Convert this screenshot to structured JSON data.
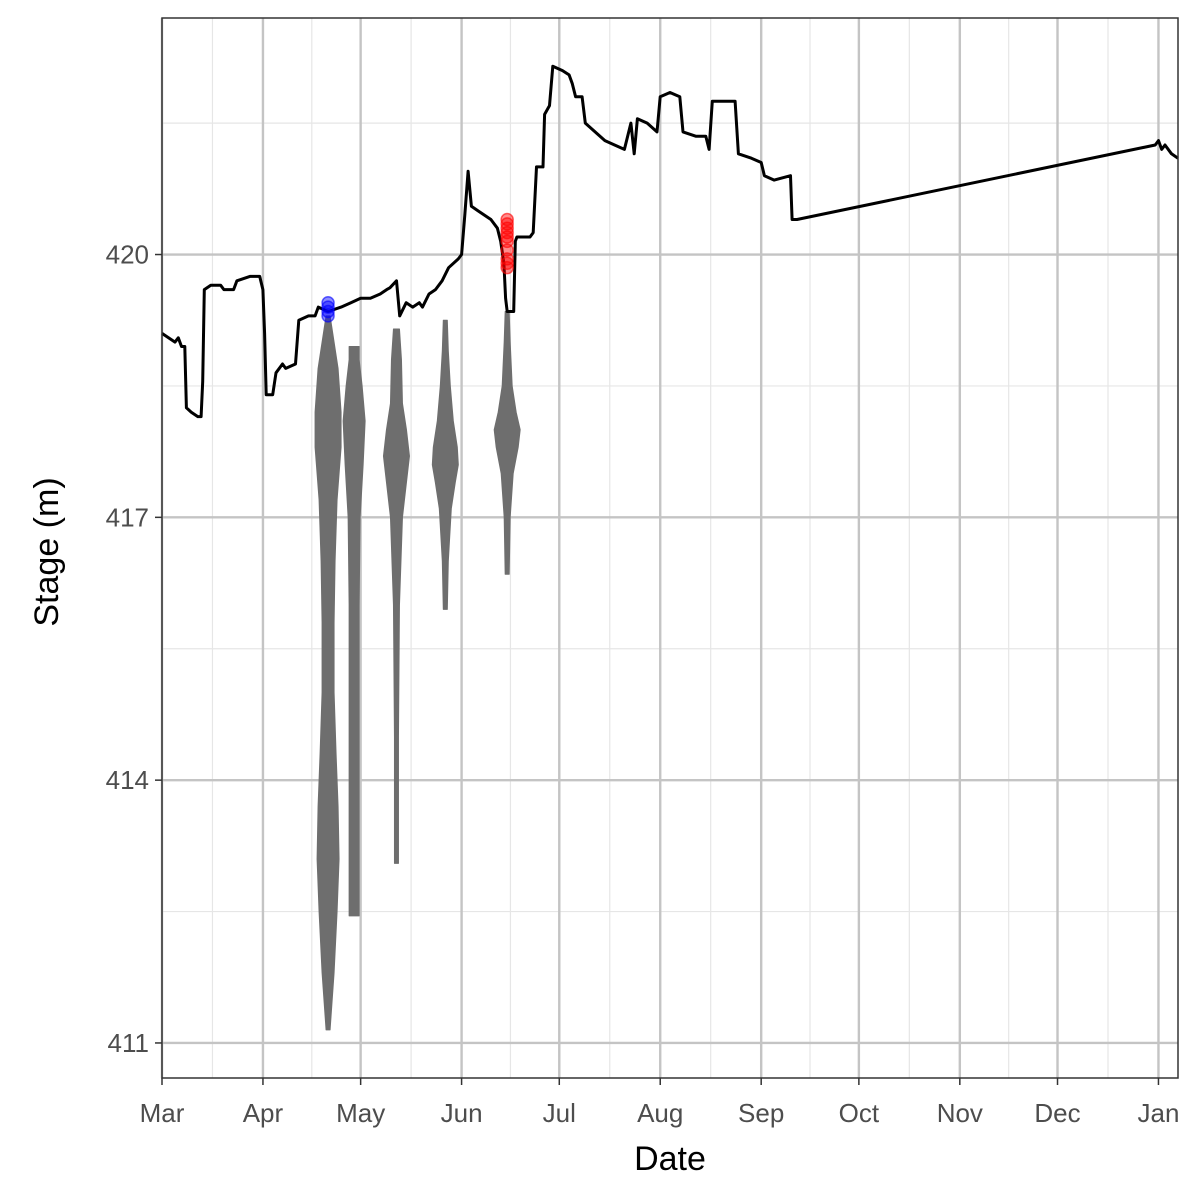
{
  "chart_data": {
    "type": "line",
    "title": "",
    "xlabel": "Date",
    "ylabel": "Stage (m)",
    "x_ticks": [
      "Mar",
      "Apr",
      "May",
      "Jun",
      "Jul",
      "Aug",
      "Sep",
      "Oct",
      "Nov",
      "Dec",
      "Jan"
    ],
    "y_ticks": [
      411,
      414,
      417,
      420
    ],
    "xlim": [
      "Mar 1",
      "Jan 7"
    ],
    "ylim": [
      410.6,
      422.7
    ],
    "grid": true,
    "legend": "none",
    "colors": {
      "line": "#000000",
      "violin": "#6e6e6e",
      "blue_points": "#0000ff",
      "red_points": "#ff0000",
      "grid_major": "#c4c4c4",
      "grid_minor": "#e6e6e6"
    },
    "series": [
      {
        "kind": "line",
        "points": [
          [
            "Mar 1",
            419.1
          ],
          [
            "Mar 3",
            419.05
          ],
          [
            "Mar 5",
            419.0
          ],
          [
            "Mar 6",
            419.05
          ],
          [
            "Mar 7",
            418.95
          ],
          [
            "Mar 8",
            418.95
          ],
          [
            "Mar 8.5",
            418.25
          ],
          [
            "Mar 10",
            418.2
          ],
          [
            "Mar 12",
            418.15
          ],
          [
            "Mar 13",
            418.15
          ],
          [
            "Mar 13.5",
            418.55
          ],
          [
            "Mar 14",
            419.6
          ],
          [
            "Mar 16",
            419.65
          ],
          [
            "Mar 19",
            419.65
          ],
          [
            "Mar 20",
            419.6
          ],
          [
            "Mar 23",
            419.6
          ],
          [
            "Mar 24",
            419.7
          ],
          [
            "Mar 28",
            419.75
          ],
          [
            "Mar 31",
            419.75
          ],
          [
            "Apr 1",
            419.6
          ],
          [
            "Apr 1.5",
            419.1
          ],
          [
            "Apr 2",
            418.4
          ],
          [
            "Apr 4",
            418.4
          ],
          [
            "Apr 5",
            418.65
          ],
          [
            "Apr 7",
            418.75
          ],
          [
            "Apr 8",
            418.7
          ],
          [
            "Apr 11",
            418.75
          ],
          [
            "Apr 12",
            419.25
          ],
          [
            "Apr 15",
            419.3
          ],
          [
            "Apr 17",
            419.3
          ],
          [
            "Apr 18",
            419.4
          ],
          [
            "Apr 21",
            419.35
          ],
          [
            "Apr 25",
            419.4
          ],
          [
            "Apr 28",
            419.45
          ],
          [
            "May 1",
            419.5
          ],
          [
            "May 4",
            419.5
          ],
          [
            "May 7",
            419.55
          ],
          [
            "May 9",
            419.6
          ],
          [
            "May 10",
            419.62
          ],
          [
            "May 12",
            419.7
          ],
          [
            "May 13",
            419.3
          ],
          [
            "May 15",
            419.45
          ],
          [
            "May 17",
            419.4
          ],
          [
            "May 19",
            419.45
          ],
          [
            "May 20",
            419.4
          ],
          [
            "May 22",
            419.55
          ],
          [
            "May 24",
            419.6
          ],
          [
            "May 26",
            419.7
          ],
          [
            "May 28",
            419.85
          ],
          [
            "May 31",
            419.95
          ],
          [
            "Jun 1",
            420.0
          ],
          [
            "Jun 2",
            420.45
          ],
          [
            "Jun 3",
            420.95
          ],
          [
            "Jun 4",
            420.55
          ],
          [
            "Jun 6",
            420.5
          ],
          [
            "Jun 8",
            420.45
          ],
          [
            "Jun 10",
            420.4
          ],
          [
            "Jun 12",
            420.3
          ],
          [
            "Jun 13",
            420.15
          ],
          [
            "Jun 14",
            419.9
          ],
          [
            "Jun 14.5",
            419.5
          ],
          [
            "Jun 15",
            419.35
          ],
          [
            "Jun 17",
            419.35
          ],
          [
            "Jun 17.5",
            420.15
          ],
          [
            "Jun 18",
            420.2
          ],
          [
            "Jun 20",
            420.2
          ],
          [
            "Jun 22",
            420.2
          ],
          [
            "Jun 23",
            420.25
          ],
          [
            "Jun 24",
            421.0
          ],
          [
            "Jun 26",
            421.0
          ],
          [
            "Jun 26.5",
            421.6
          ],
          [
            "Jun 28",
            421.7
          ],
          [
            "Jun 29",
            422.15
          ],
          [
            "Jul 2",
            422.1
          ],
          [
            "Jul 4",
            422.05
          ],
          [
            "Jul 5",
            421.95
          ],
          [
            "Jul 6",
            421.8
          ],
          [
            "Jul 8",
            421.8
          ],
          [
            "Jul 9",
            421.5
          ],
          [
            "Jul 12",
            421.4
          ],
          [
            "Jul 15",
            421.3
          ],
          [
            "Jul 18",
            421.25
          ],
          [
            "Jul 21",
            421.2
          ],
          [
            "Jul 23",
            421.5
          ],
          [
            "Jul 24",
            421.15
          ],
          [
            "Jul 25",
            421.55
          ],
          [
            "Jul 28",
            421.5
          ],
          [
            "Jul 31",
            421.4
          ],
          [
            "Aug 1",
            421.8
          ],
          [
            "Aug 4",
            421.85
          ],
          [
            "Aug 7",
            421.8
          ],
          [
            "Aug 8",
            421.4
          ],
          [
            "Aug 12",
            421.35
          ],
          [
            "Aug 15",
            421.35
          ],
          [
            "Aug 16",
            421.2
          ],
          [
            "Aug 17",
            421.75
          ],
          [
            "Aug 20",
            421.75
          ],
          [
            "Aug 24",
            421.75
          ],
          [
            "Aug 25",
            421.15
          ],
          [
            "Aug 29",
            421.1
          ],
          [
            "Sep 1",
            421.05
          ],
          [
            "Sep 2",
            420.9
          ],
          [
            "Sep 5",
            420.85
          ],
          [
            "Sep 10",
            420.9
          ],
          [
            "Sep 10.5",
            420.4
          ],
          [
            "Sep 12",
            420.4
          ],
          [
            "Dec 31",
            421.25
          ],
          [
            "Jan 1",
            421.3
          ],
          [
            "Jan 2",
            421.2
          ],
          [
            "Jan 3",
            421.25
          ],
          [
            "Jan 5",
            421.15
          ],
          [
            "Jan 7",
            421.1
          ]
        ]
      },
      {
        "kind": "points",
        "color": "blue",
        "points": [
          [
            "Apr 21",
            419.3
          ],
          [
            "Apr 21",
            419.35
          ],
          [
            "Apr 21",
            419.4
          ],
          [
            "Apr 21",
            419.45
          ]
        ]
      },
      {
        "kind": "points",
        "color": "red",
        "points": [
          [
            "Jun 15",
            420.4
          ],
          [
            "Jun 15",
            420.35
          ],
          [
            "Jun 15",
            420.3
          ],
          [
            "Jun 15",
            420.25
          ],
          [
            "Jun 15",
            420.2
          ],
          [
            "Jun 15",
            420.15
          ],
          [
            "Jun 15",
            420.05
          ],
          [
            "Jun 15",
            419.95
          ],
          [
            "Jun 15",
            419.9
          ],
          [
            "Jun 15",
            419.85
          ]
        ]
      }
    ],
    "violins": [
      {
        "x": "Apr 21",
        "min": 411.15,
        "max": 419.3,
        "profile": [
          [
            411.15,
            2
          ],
          [
            411.8,
            6
          ],
          [
            412.5,
            9
          ],
          [
            413.1,
            11
          ],
          [
            413.7,
            10
          ],
          [
            414.3,
            8
          ],
          [
            415.0,
            6
          ],
          [
            415.8,
            6
          ],
          [
            416.5,
            7
          ],
          [
            417.2,
            9
          ],
          [
            417.8,
            13
          ],
          [
            418.2,
            13
          ],
          [
            418.7,
            10
          ],
          [
            419.0,
            6
          ],
          [
            419.3,
            2
          ]
        ]
      },
      {
        "x": "Apr 29",
        "min": 412.45,
        "max": 418.95,
        "profile": [
          [
            412.45,
            5
          ],
          [
            413.0,
            5
          ],
          [
            414.0,
            5
          ],
          [
            415.0,
            5
          ],
          [
            416.0,
            5
          ],
          [
            417.0,
            6
          ],
          [
            417.6,
            9
          ],
          [
            418.1,
            11
          ],
          [
            418.5,
            8
          ],
          [
            418.8,
            5
          ],
          [
            418.95,
            5
          ]
        ]
      },
      {
        "x": "May 12",
        "min": 413.05,
        "max": 419.15,
        "profile": [
          [
            413.05,
            2
          ],
          [
            414.5,
            2
          ],
          [
            416.0,
            3
          ],
          [
            417.0,
            6
          ],
          [
            417.5,
            11
          ],
          [
            417.7,
            13
          ],
          [
            418.0,
            10
          ],
          [
            418.3,
            6
          ],
          [
            418.8,
            5
          ],
          [
            419.15,
            3
          ]
        ]
      },
      {
        "x": "May 27",
        "min": 415.95,
        "max": 419.25,
        "profile": [
          [
            415.95,
            2
          ],
          [
            416.5,
            3
          ],
          [
            417.1,
            6
          ],
          [
            417.4,
            10
          ],
          [
            417.6,
            13
          ],
          [
            417.8,
            12
          ],
          [
            418.1,
            8
          ],
          [
            418.5,
            5
          ],
          [
            418.9,
            3
          ],
          [
            419.25,
            2
          ]
        ]
      },
      {
        "x": "Jun 15",
        "min": 416.35,
        "max": 419.35,
        "profile": [
          [
            416.35,
            2
          ],
          [
            417.0,
            3
          ],
          [
            417.5,
            6
          ],
          [
            417.8,
            11
          ],
          [
            418.0,
            13
          ],
          [
            418.2,
            9
          ],
          [
            418.5,
            5
          ],
          [
            419.0,
            3
          ],
          [
            419.35,
            2
          ]
        ]
      }
    ]
  }
}
